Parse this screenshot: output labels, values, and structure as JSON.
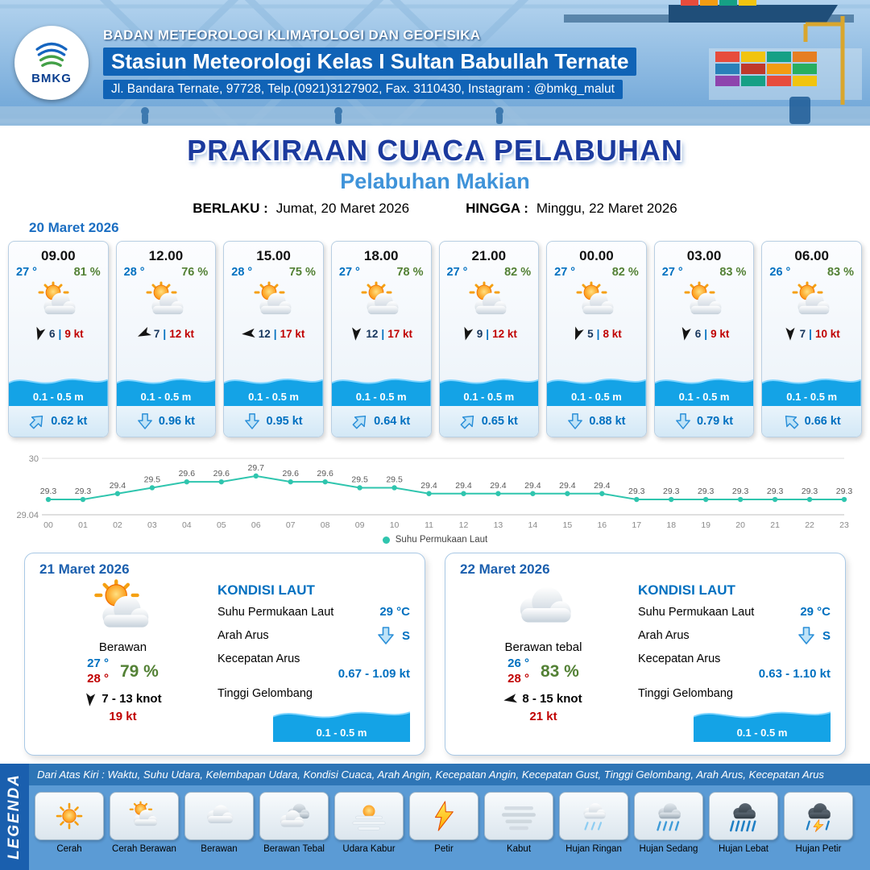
{
  "colors": {
    "header-blue": "#1063b6",
    "title-navy": "#1b3a9e",
    "subtitle-blue": "#3f93d9",
    "temp-blue": "#0070c0",
    "humidity-green": "#538135",
    "gust-red": "#c00000",
    "wave-blue": "#14a3e6",
    "chart-teal": "#2fc5ae"
  },
  "header": {
    "logo_text": "BMKG",
    "org": "BADAN METEOROLOGI KLIMATOLOGI DAN GEOFISIKA",
    "station": "Stasiun Meteorologi Kelas I Sultan Babullah Ternate",
    "address": "Jl. Bandara Ternate, 97728, Telp.(0921)3127902, Fax. 3110430, Instagram : @bmkg_malut"
  },
  "title": {
    "main": "PRAKIRAAN CUACA PELABUHAN",
    "sub": "Pelabuhan Makian",
    "berlaku_label": "BERLAKU :",
    "berlaku": "Jumat, 20 Maret 2026",
    "hingga_label": "HINGGA :",
    "hingga": "Minggu, 22 Maret 2026"
  },
  "forecast": {
    "date": "20 Maret 2026",
    "sep": "|",
    "cards": [
      {
        "time": "09.00",
        "temp": "27 °",
        "humidity": "81 %",
        "wind_speed": "6",
        "gust": "9 kt",
        "wind_deg": 15,
        "wave": "0.1 - 0.5 m",
        "current": "0.62 kt",
        "current_deg": 225
      },
      {
        "time": "12.00",
        "temp": "28 °",
        "humidity": "76 %",
        "wind_speed": "7",
        "gust": "12 kt",
        "wind_deg": 65,
        "wave": "0.1 - 0.5 m",
        "current": "0.96 kt",
        "current_deg": 0
      },
      {
        "time": "15.00",
        "temp": "28 °",
        "humidity": "75 %",
        "wind_speed": "12",
        "gust": "17 kt",
        "wind_deg": 85,
        "wave": "0.1 - 0.5 m",
        "current": "0.95 kt",
        "current_deg": 0
      },
      {
        "time": "18.00",
        "temp": "27 °",
        "humidity": "78 %",
        "wind_speed": "12",
        "gust": "17 kt",
        "wind_deg": 5,
        "wave": "0.1 - 0.5 m",
        "current": "0.64 kt",
        "current_deg": 225
      },
      {
        "time": "21.00",
        "temp": "27 °",
        "humidity": "82 %",
        "wind_speed": "9",
        "gust": "12 kt",
        "wind_deg": 15,
        "wave": "0.1 - 0.5 m",
        "current": "0.65 kt",
        "current_deg": 225
      },
      {
        "time": "00.00",
        "temp": "27 °",
        "humidity": "82 %",
        "wind_speed": "5",
        "gust": "8 kt",
        "wind_deg": 20,
        "wave": "0.1 - 0.5 m",
        "current": "0.88 kt",
        "current_deg": 0
      },
      {
        "time": "03.00",
        "temp": "27 °",
        "humidity": "83 %",
        "wind_speed": "6",
        "gust": "9 kt",
        "wind_deg": 10,
        "wave": "0.1 - 0.5 m",
        "current": "0.79 kt",
        "current_deg": 0
      },
      {
        "time": "06.00",
        "temp": "26 °",
        "humidity": "83 %",
        "wind_speed": "7",
        "gust": "10 kt",
        "wind_deg": 0,
        "wave": "0.1 - 0.5 m",
        "current": "0.66 kt",
        "current_deg": 135
      }
    ]
  },
  "chart_data": {
    "type": "line",
    "legend": "Suhu Permukaan Laut",
    "line_color": "#2fc5ae",
    "ylim": [
      29.04,
      30
    ],
    "x": [
      "00",
      "01",
      "02",
      "03",
      "04",
      "05",
      "06",
      "07",
      "08",
      "09",
      "10",
      "11",
      "12",
      "13",
      "14",
      "15",
      "16",
      "17",
      "18",
      "19",
      "20",
      "21",
      "22",
      "23"
    ],
    "values": [
      29.3,
      29.3,
      29.4,
      29.5,
      29.6,
      29.6,
      29.7,
      29.6,
      29.6,
      29.5,
      29.5,
      29.4,
      29.4,
      29.4,
      29.4,
      29.4,
      29.4,
      29.3,
      29.3,
      29.3,
      29.3,
      29.3,
      29.3,
      29.3
    ]
  },
  "days": [
    {
      "date": "21 Maret 2026",
      "condition": "Berawan",
      "temp_min": "27 °",
      "temp_max": "28 °",
      "humidity": "79 %",
      "wind": "7  - 13 knot",
      "gust": "19 kt",
      "wind_deg": 5,
      "sea": {
        "title": "KONDISI LAUT",
        "sst_label": "Suhu Permukaan Laut",
        "sst": "29 °C",
        "dir_label": "Arah Arus",
        "dir": "S",
        "dir_deg": 0,
        "speed_label": "Kecepatan Arus",
        "speed": "0.67  - 1.09 kt",
        "wave_label": "Tinggi Gelombang",
        "wave": "0.1 - 0.5 m"
      }
    },
    {
      "date": "22 Maret 2026",
      "condition": "Berawan tebal",
      "temp_min": "26 °",
      "temp_max": "28 °",
      "humidity": "83 %",
      "wind": "8  - 15 knot",
      "gust": "21 kt",
      "wind_deg": 80,
      "sea": {
        "title": "KONDISI LAUT",
        "sst_label": "Suhu Permukaan Laut",
        "sst": "29 °C",
        "dir_label": "Arah Arus",
        "dir": "S",
        "dir_deg": 0,
        "speed_label": "Kecepatan Arus",
        "speed": "0.63  - 1.10 kt",
        "wave_label": "Tinggi Gelombang",
        "wave": "0.1 - 0.5 m"
      }
    }
  ],
  "legend": {
    "title": "LEGENDA",
    "note": "Dari Atas Kiri : Waktu, Suhu Udara, Kelembapan Udara, Kondisi Cuaca, Arah Angin, Kecepatan Angin, Kecepatan Gust, Tinggi Gelombang, Arah Arus, Kecepatan Arus",
    "items": [
      {
        "label": "Cerah",
        "icon": "sun-icon"
      },
      {
        "label": "Cerah Berawan",
        "icon": "sun-cloud-icon"
      },
      {
        "label": "Berawan",
        "icon": "cloud-icon"
      },
      {
        "label": "Berawan Tebal",
        "icon": "clouds-icon"
      },
      {
        "label": "Udara Kabur",
        "icon": "haze-icon"
      },
      {
        "label": "Petir",
        "icon": "lightning-icon"
      },
      {
        "label": "Kabut",
        "icon": "fog-icon"
      },
      {
        "label": "Hujan Ringan",
        "icon": "light-rain-icon"
      },
      {
        "label": "Hujan Sedang",
        "icon": "moderate-rain-icon"
      },
      {
        "label": "Hujan Lebat",
        "icon": "heavy-rain-icon"
      },
      {
        "label": "Hujan Petir",
        "icon": "thunderstorm-icon"
      }
    ]
  }
}
